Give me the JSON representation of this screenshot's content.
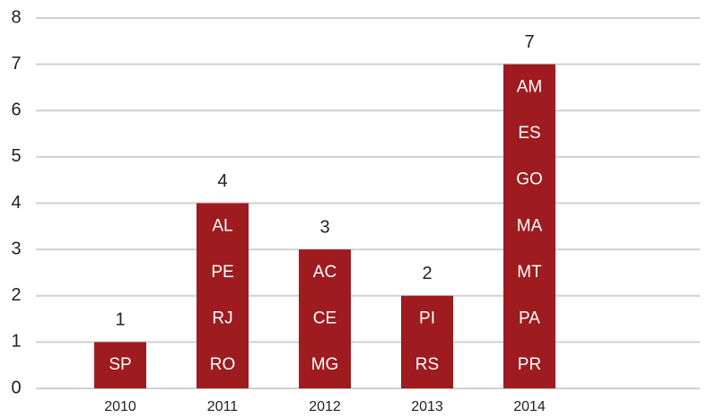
{
  "chart_data": {
    "type": "bar",
    "categories": [
      "2010",
      "2011",
      "2012",
      "2013",
      "2014"
    ],
    "values": [
      1,
      4,
      3,
      2,
      7
    ],
    "bar_labels": [
      [
        "SP"
      ],
      [
        "AL",
        "PE",
        "RJ",
        "RO"
      ],
      [
        "AC",
        "CE",
        "MG"
      ],
      [
        "PI",
        "RS"
      ],
      [
        "AM",
        "ES",
        "GO",
        "MA",
        "MT",
        "PA",
        "PR"
      ]
    ],
    "color": "#9e1b20",
    "ylim": [
      0,
      8
    ],
    "yticks": [
      0,
      1,
      2,
      3,
      4,
      5,
      6,
      7,
      8
    ],
    "grid": true
  }
}
